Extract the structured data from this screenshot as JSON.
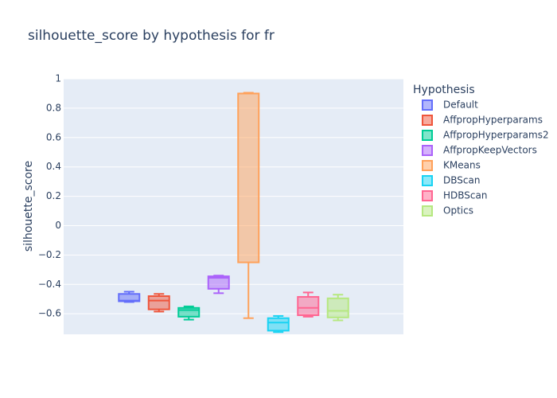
{
  "chart_data": {
    "type": "box",
    "title": "silhouette_score by hypothesis for fr",
    "y_label": "silhouette_score",
    "legend_title": "Hypothesis",
    "ylim": [
      -0.74,
      1.0
    ],
    "yticks": [
      {
        "value": -0.6,
        "label": "−0.6"
      },
      {
        "value": -0.4,
        "label": "−0.4"
      },
      {
        "value": -0.2,
        "label": "−0.2"
      },
      0,
      0.2,
      0.4,
      0.6,
      0.8,
      1
    ],
    "grid": true,
    "series": [
      {
        "name": "Default",
        "color": "#636efa",
        "min": -0.52,
        "q1": -0.515,
        "median": -0.51,
        "q3": -0.465,
        "max": -0.45
      },
      {
        "name": "AffpropHyperparams",
        "color": "#ef553b",
        "min": -0.585,
        "q1": -0.57,
        "median": -0.51,
        "q3": -0.48,
        "max": -0.465
      },
      {
        "name": "AffpropHyperparams2",
        "color": "#00cc96",
        "min": -0.64,
        "q1": -0.62,
        "median": -0.575,
        "q3": -0.56,
        "max": -0.55
      },
      {
        "name": "AffpropKeepVectors",
        "color": "#ab63fa",
        "min": -0.46,
        "q1": -0.43,
        "median": -0.355,
        "q3": -0.345,
        "max": -0.34
      },
      {
        "name": "KMeans",
        "color": "#ffa15a",
        "min": -0.63,
        "q1": -0.25,
        "median": 0.9,
        "q3": 0.9,
        "max": 0.905
      },
      {
        "name": "DBScan",
        "color": "#19d3f3",
        "min": -0.725,
        "q1": -0.715,
        "median": -0.66,
        "q3": -0.63,
        "max": -0.615
      },
      {
        "name": "HDBScan",
        "color": "#ff6692",
        "min": -0.62,
        "q1": -0.61,
        "median": -0.56,
        "q3": -0.485,
        "max": -0.455
      },
      {
        "name": "Optics",
        "color": "#b6e880",
        "min": -0.645,
        "q1": -0.625,
        "median": -0.58,
        "q3": -0.495,
        "max": -0.47
      }
    ]
  }
}
